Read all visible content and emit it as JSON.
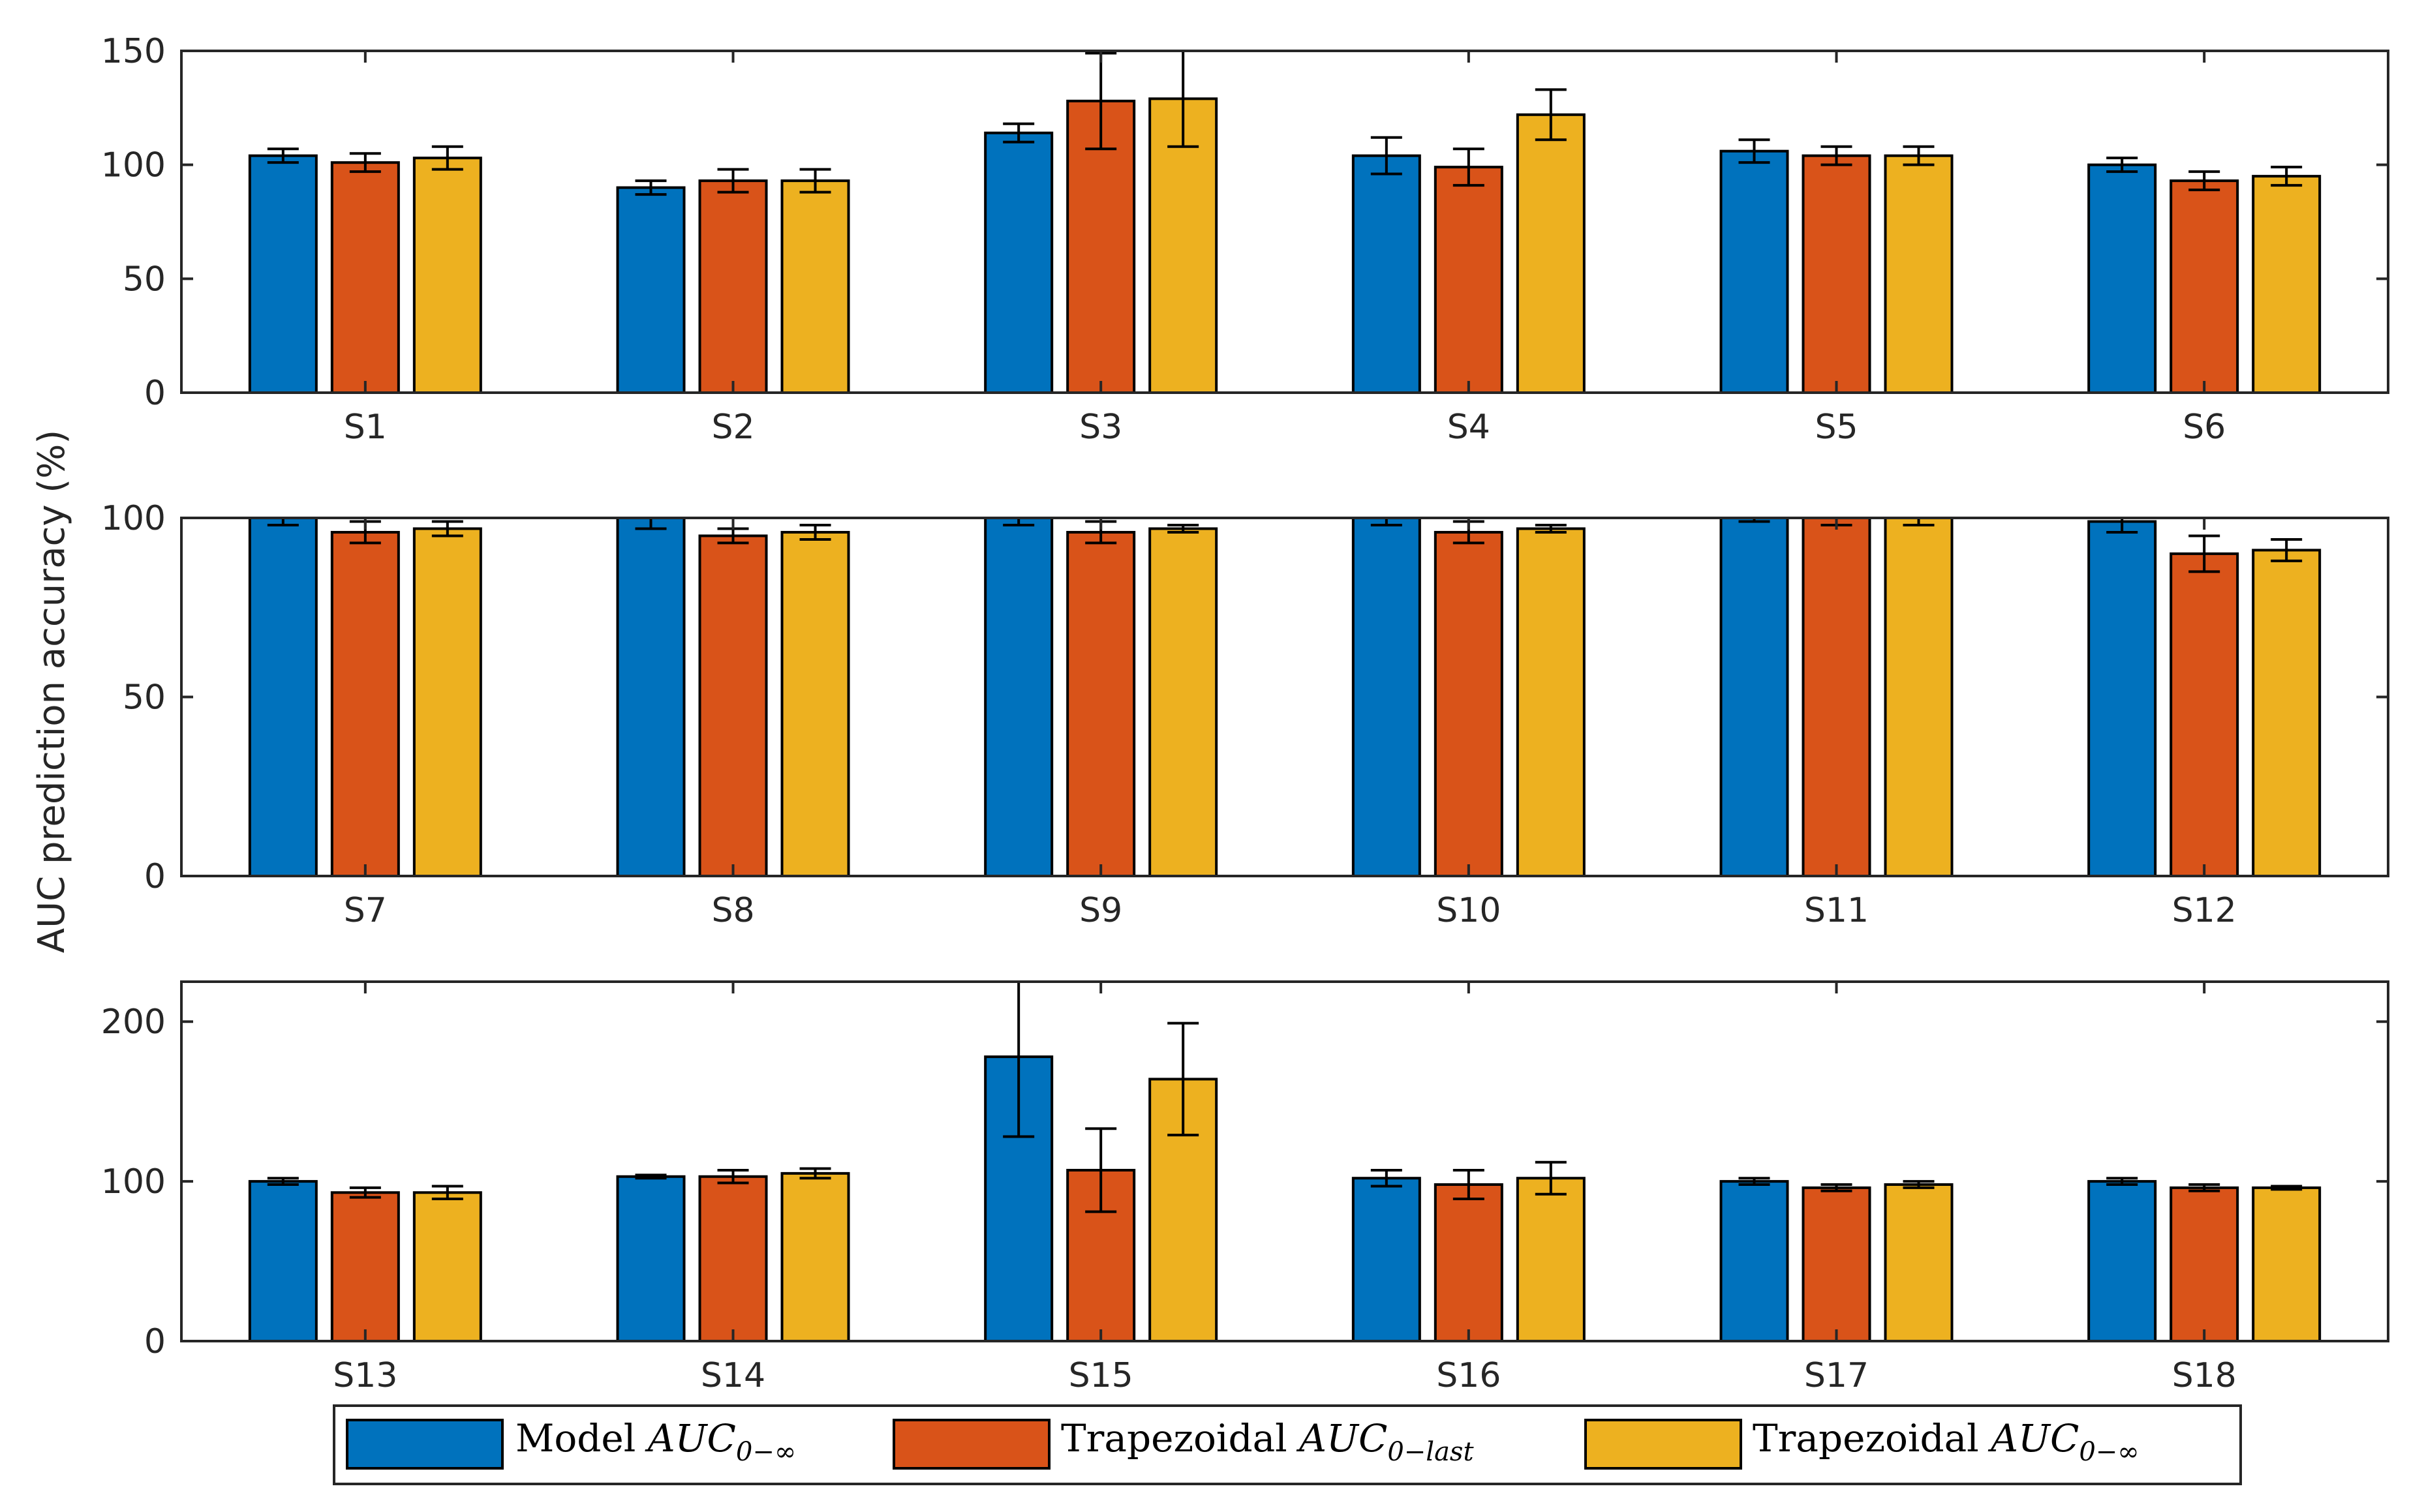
{
  "colors": {
    "model": "#0072BD",
    "trap_last": "#D95319",
    "trap_inf": "#EDB120"
  },
  "chart_data": [
    {
      "type": "bar",
      "panel": "top",
      "categories": [
        "S1",
        "S2",
        "S3",
        "S4",
        "S5",
        "S6"
      ],
      "ylim": [
        0,
        150
      ],
      "yticks": [
        0,
        50,
        100,
        150
      ],
      "series": [
        {
          "name": "Model AUC0-∞",
          "values": [
            104,
            90,
            114,
            104,
            106,
            100
          ],
          "errors": [
            3,
            3,
            4,
            8,
            5,
            3
          ]
        },
        {
          "name": "Trapezoidal AUC0-last",
          "values": [
            101,
            93,
            128,
            99,
            104,
            93
          ],
          "errors": [
            4,
            5,
            21,
            8,
            4,
            4
          ]
        },
        {
          "name": "Trapezoidal AUC0-∞",
          "values": [
            103,
            93,
            129,
            122,
            104,
            95
          ],
          "errors": [
            5,
            5,
            21,
            11,
            4,
            4
          ]
        }
      ]
    },
    {
      "type": "bar",
      "panel": "middle",
      "categories": [
        "S7",
        "S8",
        "S9",
        "S10",
        "S11",
        "S12"
      ],
      "ylim": [
        0,
        100
      ],
      "yticks": [
        0,
        50,
        100
      ],
      "series": [
        {
          "name": "Model AUC0-∞",
          "values": [
            100,
            100,
            100,
            101,
            101,
            99
          ],
          "errors": [
            2,
            3,
            2,
            3,
            2,
            3
          ]
        },
        {
          "name": "Trapezoidal AUC0-last",
          "values": [
            96,
            95,
            96,
            96,
            101,
            90
          ],
          "errors": [
            3,
            2,
            3,
            3,
            3,
            5
          ]
        },
        {
          "name": "Trapezoidal AUC0-∞",
          "values": [
            97,
            96,
            97,
            97,
            101,
            91
          ],
          "errors": [
            2,
            2,
            1,
            1,
            3,
            3
          ]
        }
      ]
    },
    {
      "type": "bar",
      "panel": "bottom",
      "categories": [
        "S13",
        "S14",
        "S15",
        "S16",
        "S17",
        "S18"
      ],
      "ylim": [
        0,
        225
      ],
      "yticks": [
        0,
        100,
        200
      ],
      "series": [
        {
          "name": "Model AUC0-∞",
          "values": [
            100,
            103,
            178,
            102,
            100,
            100
          ],
          "errors": [
            2,
            1,
            50,
            5,
            2,
            2
          ]
        },
        {
          "name": "Trapezoidal AUC0-last",
          "values": [
            93,
            103,
            107,
            98,
            96,
            96
          ],
          "errors": [
            3,
            4,
            26,
            9,
            2,
            2
          ]
        },
        {
          "name": "Trapezoidal AUC0-∞",
          "values": [
            93,
            105,
            164,
            102,
            98,
            96
          ],
          "errors": [
            4,
            3,
            35,
            10,
            2,
            1
          ]
        }
      ]
    }
  ],
  "ylabel": "AUC prediction accuracy (%)",
  "legend": {
    "items": [
      {
        "prefix": "Model ",
        "math": "AUC",
        "sub": "0−∞"
      },
      {
        "prefix": "Trapezoidal ",
        "math": "AUC",
        "sub": "0−last"
      },
      {
        "prefix": "Trapezoidal ",
        "math": "AUC",
        "sub": "0−∞"
      }
    ]
  }
}
